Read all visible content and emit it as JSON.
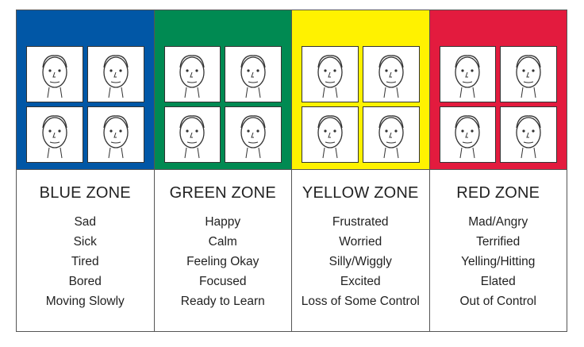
{
  "zones": [
    {
      "title": "BLUE ZONE",
      "color": "#0157a6",
      "items": [
        "Sad",
        "Sick",
        "Tired",
        "Bored",
        "Moving Slowly"
      ]
    },
    {
      "title": "GREEN ZONE",
      "color": "#008a52",
      "items": [
        "Happy",
        "Calm",
        "Feeling Okay",
        "Focused",
        "Ready to Learn"
      ]
    },
    {
      "title": "YELLOW ZONE",
      "color": "#fff200",
      "items": [
        "Frustrated",
        "Worried",
        "Silly/Wiggly",
        "Excited",
        "Loss of Some Control"
      ]
    },
    {
      "title": "RED ZONE",
      "color": "#e31b3e",
      "items": [
        "Mad/Angry",
        "Terrified",
        "Yelling/Hitting",
        "Elated",
        "Out of Control"
      ]
    }
  ]
}
